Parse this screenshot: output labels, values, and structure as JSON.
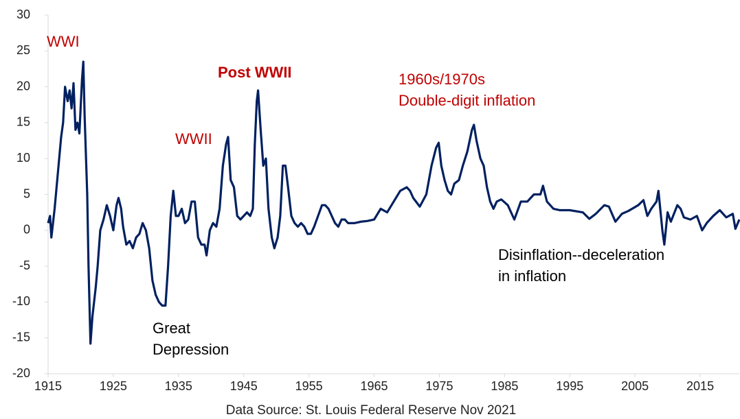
{
  "chart_data": {
    "type": "line",
    "caption": "Data Source: St. Louis Federal Reserve Nov 2021",
    "x": [
      1915.0,
      1915.3,
      1915.5,
      1916,
      1916.5,
      1917,
      1917.3,
      1917.6,
      1918,
      1918.3,
      1918.6,
      1918.9,
      1919.2,
      1919.5,
      1919.8,
      1920.2,
      1920.4,
      1920.6,
      1921.0,
      1921.2,
      1921.5,
      1921.8,
      1922.3,
      1922.6,
      1923,
      1923.5,
      1924,
      1924.5,
      1925,
      1925.5,
      1925.8,
      1926.2,
      1926.5,
      1927,
      1927.5,
      1928,
      1928.5,
      1929,
      1929.5,
      1930,
      1930.5,
      1931,
      1931.5,
      1932,
      1932.5,
      1933,
      1933.4,
      1933.8,
      1934.2,
      1934.6,
      1935,
      1935.5,
      1936,
      1936.5,
      1937,
      1937.5,
      1938,
      1938.5,
      1939,
      1939.3,
      1939.8,
      1940.3,
      1940.8,
      1941.3,
      1941.8,
      1942.3,
      1942.6,
      1943,
      1943.5,
      1944,
      1944.5,
      1945,
      1945.5,
      1946,
      1946.4,
      1946.7,
      1947,
      1947.2,
      1947.6,
      1948,
      1948.4,
      1948.8,
      1949.3,
      1949.7,
      1950.2,
      1950.6,
      1951,
      1951.4,
      1951.8,
      1952.3,
      1952.8,
      1953.3,
      1953.8,
      1954.3,
      1954.8,
      1955.3,
      1955.8,
      1956.4,
      1957,
      1957.5,
      1958,
      1958.5,
      1959,
      1959.5,
      1960,
      1960.5,
      1961,
      1962,
      1963,
      1964,
      1965,
      1966,
      1967,
      1968,
      1969,
      1970,
      1970.5,
      1971,
      1972,
      1973,
      1973.8,
      1974.5,
      1974.9,
      1975.3,
      1975.8,
      1976.3,
      1976.8,
      1977.3,
      1978,
      1978.6,
      1979.3,
      1980,
      1980.3,
      1980.7,
      1981.3,
      1981.8,
      1982.3,
      1982.8,
      1983.3,
      1983.8,
      1984.5,
      1985.5,
      1986.5,
      1987.5,
      1988.5,
      1989.5,
      1990.5,
      1990.9,
      1991.5,
      1992.5,
      1993.5,
      1995,
      1997,
      1998,
      1999,
      2000.3,
      2001,
      2002,
      2003,
      2004,
      2005.5,
      2006.3,
      2006.9,
      2007.5,
      2008.3,
      2008.6,
      2009.2,
      2009.5,
      2010,
      2010.5,
      2011.5,
      2012,
      2012.5,
      2013.5,
      2014.5,
      2015.3,
      2016,
      2017,
      2018,
      2019,
      2020,
      2020.4,
      2021
    ],
    "series": [
      {
        "color": "#002060",
        "values": [
          1,
          2,
          -1,
          3,
          8,
          13,
          15,
          20,
          18,
          19.5,
          17,
          20.5,
          14,
          15,
          13.5,
          21,
          23.5,
          16,
          5,
          -5,
          -15.8,
          -12,
          -8,
          -5,
          0,
          1.5,
          3.5,
          2,
          0,
          3.5,
          4.5,
          3,
          0.5,
          -2,
          -1.5,
          -2.5,
          -1,
          -0.5,
          1,
          0,
          -2.5,
          -7,
          -9,
          -10,
          -10.5,
          -10.5,
          -5,
          2,
          5.5,
          2,
          2,
          3,
          1,
          1.5,
          4,
          4,
          -1,
          -2,
          -2,
          -3.5,
          0,
          1,
          0.5,
          3,
          9,
          12,
          13,
          7,
          6,
          2,
          1.5,
          2,
          2.5,
          2,
          3,
          12,
          18,
          19.5,
          14,
          9,
          10,
          3,
          -1,
          -2.5,
          -1,
          2,
          9,
          9,
          6,
          2,
          1,
          0.5,
          1,
          0.5,
          -0.5,
          -0.5,
          0.5,
          2,
          3.5,
          3.5,
          3,
          2,
          1,
          0.5,
          1.5,
          1.5,
          1,
          1,
          1.2,
          1.3,
          1.5,
          3,
          2.5,
          4,
          5.5,
          6,
          5.5,
          4.5,
          3.3,
          5,
          9,
          11.5,
          12.2,
          9,
          7,
          5.5,
          5,
          6.5,
          7,
          9,
          11,
          14,
          14.7,
          12.5,
          10,
          9,
          6,
          4,
          3,
          4,
          4.3,
          3.5,
          1.5,
          4,
          4,
          5,
          5,
          6.2,
          4,
          3,
          2.8,
          2.8,
          2.5,
          1.6,
          2.3,
          3.5,
          3.3,
          1.2,
          2.3,
          2.7,
          3.5,
          4.2,
          2,
          3,
          4,
          5.5,
          0,
          -2,
          2.5,
          1.2,
          3.5,
          3,
          1.8,
          1.5,
          2,
          0,
          1,
          2,
          2.8,
          1.8,
          2.3,
          0.2,
          1.5
        ]
      }
    ],
    "xlim": [
      1915,
      2021
    ],
    "ylim": [
      -20,
      30
    ],
    "xticks": [
      1915,
      1925,
      1935,
      1945,
      1955,
      1965,
      1975,
      1985,
      1995,
      2005,
      2015
    ],
    "yticks": [
      -20,
      -15,
      -10,
      -5,
      0,
      5,
      10,
      15,
      20,
      25,
      30
    ],
    "annotations": [
      {
        "lines": [
          "WWI"
        ],
        "color": "#c00000"
      },
      {
        "lines": [
          "Post WWII"
        ],
        "color": "#c00000",
        "bold": true
      },
      {
        "lines": [
          "WWII"
        ],
        "color": "#c00000"
      },
      {
        "lines": [
          "1960s/1970s",
          "Double-digit inflation"
        ],
        "color": "#c00000"
      },
      {
        "lines": [
          "Great",
          "Depression"
        ],
        "color": "#000000"
      },
      {
        "lines": [
          "Disinflation--deceleration",
          "in inflation"
        ],
        "color": "#000000"
      }
    ]
  }
}
